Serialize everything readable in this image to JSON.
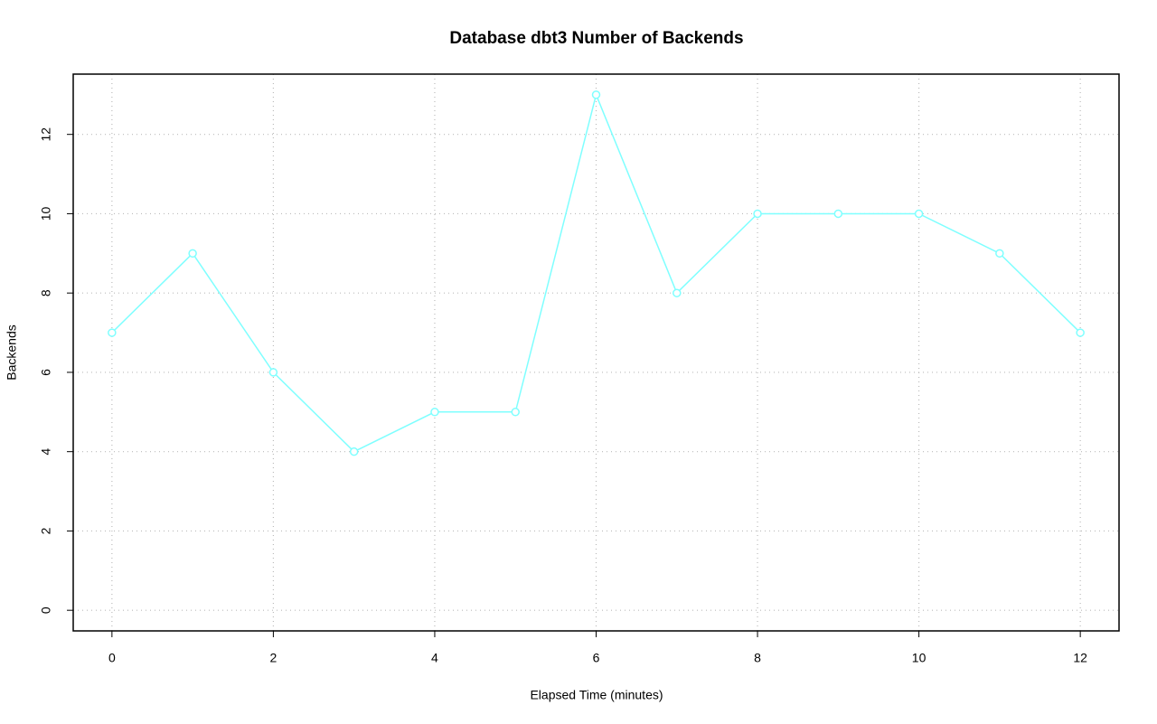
{
  "chart_data": {
    "type": "line",
    "title": "Database dbt3 Number of Backends",
    "x_label": "Elapsed Time (minutes)",
    "y_label": "Backends",
    "x": [
      0,
      1,
      2,
      3,
      4,
      5,
      6,
      7,
      8,
      9,
      10,
      11,
      12
    ],
    "series": [
      {
        "name": "Backends",
        "color": "#7fffff",
        "values": [
          7,
          9,
          6,
          4,
          5,
          5,
          13,
          8,
          10,
          10,
          10,
          9,
          7
        ]
      }
    ],
    "xlim": [
      -0.48,
      12.48
    ],
    "xticks": [
      0,
      2,
      4,
      6,
      8,
      10,
      12
    ],
    "ylim": [
      -0.52,
      13.52
    ],
    "yticks": [
      0,
      2,
      4,
      6,
      8,
      10,
      12
    ],
    "grid": true
  }
}
